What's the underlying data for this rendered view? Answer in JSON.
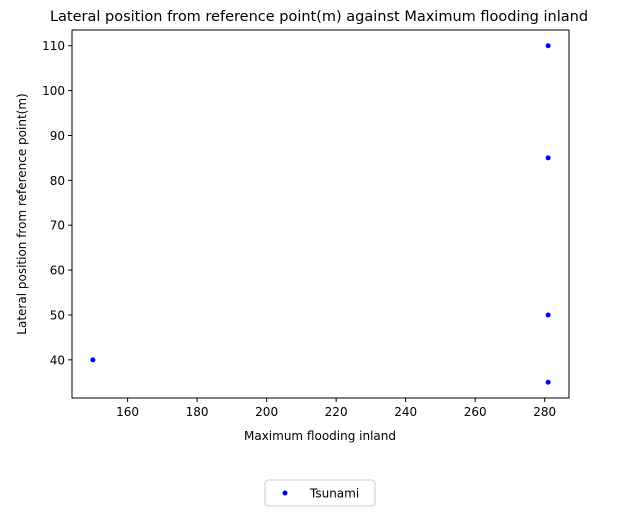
{
  "chart_data": {
    "type": "scatter",
    "title": "Lateral position from reference point(m) against Maximum flooding inland",
    "xlabel": "Maximum flooding inland",
    "ylabel": "Lateral position from reference point(m)",
    "xlim": [
      144,
      287
    ],
    "ylim": [
      31.5,
      113.5
    ],
    "xticks": [
      160,
      180,
      200,
      220,
      240,
      260,
      280
    ],
    "yticks": [
      40,
      50,
      60,
      70,
      80,
      90,
      100,
      110
    ],
    "grid": false,
    "legend_position": "bottom-center",
    "series": [
      {
        "name": "Tsunami",
        "color": "#0000ff",
        "points": [
          {
            "x": 150,
            "y": 40
          },
          {
            "x": 281,
            "y": 110
          },
          {
            "x": 281,
            "y": 85
          },
          {
            "x": 281,
            "y": 50
          },
          {
            "x": 281,
            "y": 35
          }
        ]
      }
    ]
  }
}
